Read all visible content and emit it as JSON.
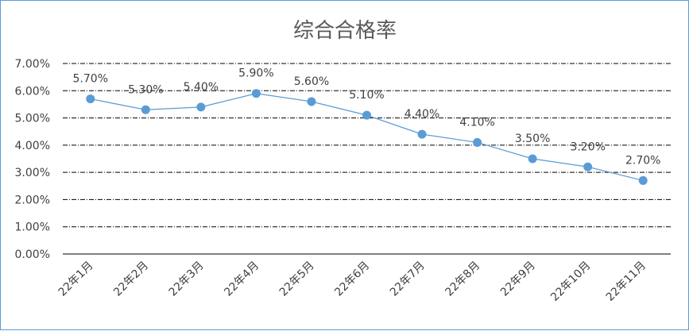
{
  "chart_data": {
    "type": "line",
    "title": "综合合格率",
    "categories": [
      "22年1月",
      "22年2月",
      "22年3月",
      "22年4月",
      "22年5月",
      "22年6月",
      "22年7月",
      "22年8月",
      "22年9月",
      "22年10月",
      "22年11月"
    ],
    "series": [
      {
        "values": [
          5.7,
          5.3,
          5.4,
          5.9,
          5.6,
          5.1,
          4.4,
          4.1,
          3.5,
          3.2,
          2.7
        ]
      }
    ],
    "data_labels": [
      "5.70%",
      "5.30%",
      "5.40%",
      "5.90%",
      "5.60%",
      "5.10%",
      "4.40%",
      "4.10%",
      "3.50%",
      "3.20%",
      "2.70%"
    ],
    "y_ticks": [
      "0.00%",
      "1.00%",
      "2.00%",
      "3.00%",
      "4.00%",
      "5.00%",
      "6.00%",
      "7.00%"
    ],
    "ylim": [
      0,
      7
    ],
    "y_tick_step": 1,
    "gridlines": "horizontal dash-dot",
    "legend": "none",
    "line_color": "#5b9bd5",
    "marker_color": "#5b9bd5"
  }
}
